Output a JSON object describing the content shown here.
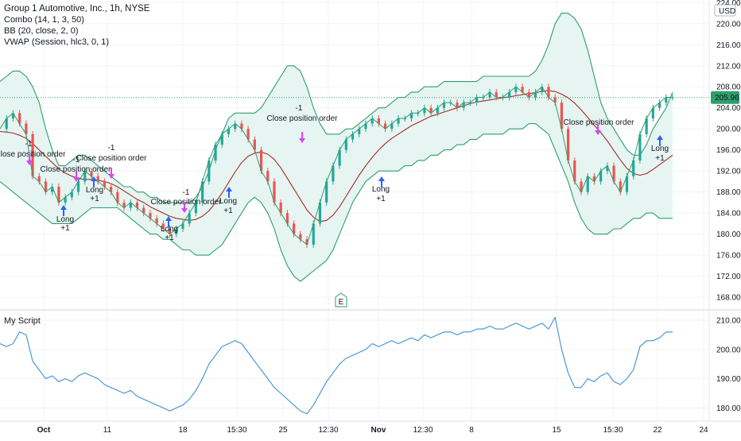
{
  "legend": {
    "title": "Group 1 Automotive, Inc., 1h, NYSE",
    "combo": "Combo (14, 1, 3, 50)",
    "bb": "BB (20, close, 2, 0)",
    "vwap": "VWAP (Session, hlc3, 0, 1)",
    "script": "My Script"
  },
  "currency": "USD",
  "last_price": "205.96",
  "earnings_marker": "E",
  "colors": {
    "up": "#26a69a",
    "down": "#ef5350",
    "bb_band": "#2e9e6b",
    "bb_fill": "#e6f5f1",
    "basis": "#a52a2a",
    "price_line": "#2e9e6b",
    "vwap": "#2962ff",
    "script_line": "#3d8fd6",
    "long_arrow": "#2962ff",
    "close_arrow": "#e040fb"
  },
  "x_axis_labels": [
    "Oct",
    "11",
    "18",
    "15:30",
    "25",
    "12:30",
    "Nov",
    "12:30",
    "8",
    "15",
    "15:30",
    "22",
    "24"
  ],
  "chart_data": [
    {
      "type": "line",
      "title": "Group 1 Automotive, Inc., 1h, NYSE",
      "yaxis_ticks": [
        "224.00",
        "220.00",
        "216.00",
        "212.00",
        "208.00",
        "204.00",
        "200.00",
        "196.00",
        "192.00",
        "188.00",
        "184.00",
        "180.00",
        "176.00",
        "172.00",
        "168.00"
      ],
      "ylim": [
        166.5,
        224.5
      ],
      "grid": true,
      "x": [
        0,
        2,
        4,
        6,
        8,
        10,
        12,
        14,
        16,
        18,
        20,
        22,
        24,
        26,
        28,
        30,
        32,
        34,
        36,
        38,
        40,
        42,
        44,
        46,
        48,
        50,
        52,
        54,
        56,
        58,
        60,
        62,
        64,
        66,
        68,
        70,
        72,
        74,
        76,
        78,
        80,
        82,
        84,
        86,
        88,
        90,
        92,
        94,
        96,
        98,
        100,
        102,
        104,
        106,
        108,
        110,
        112,
        114,
        116,
        118,
        120,
        122,
        124,
        126,
        128,
        130,
        132,
        134,
        136,
        138,
        140,
        142,
        144,
        146,
        148,
        150,
        152,
        154,
        156,
        158,
        160,
        162,
        164,
        166,
        168,
        170,
        172,
        174,
        176,
        178,
        180,
        182,
        184,
        186,
        188,
        190,
        192,
        194,
        196,
        198,
        200,
        202,
        204,
        206
      ],
      "series": [
        {
          "values": [
            200,
            202,
            203,
            201,
            199,
            191,
            190,
            188,
            189,
            186,
            187,
            188,
            190,
            192,
            191,
            190,
            189,
            188,
            186,
            185,
            186,
            185,
            184,
            183,
            182,
            181,
            180,
            181,
            182,
            184,
            186,
            190,
            194,
            197,
            199,
            200,
            201,
            200,
            198,
            196,
            192,
            190,
            186,
            184,
            182,
            180,
            179,
            178,
            182,
            186,
            190,
            193,
            196,
            198,
            199,
            200,
            201,
            202,
            201,
            200,
            201,
            202,
            202,
            203,
            203,
            204,
            203,
            204,
            205,
            205,
            204,
            205,
            205,
            206,
            206,
            207,
            206,
            206,
            207,
            208,
            207,
            206,
            207,
            208,
            206,
            205,
            200,
            194,
            190,
            188,
            191,
            190,
            192,
            193,
            190,
            188,
            191,
            194,
            199,
            202,
            204,
            205,
            206,
            206
          ]
        },
        {
          "name": "BB Basis",
          "values": [
            199.5,
            199.4,
            199.2,
            198.8,
            198.2,
            197.2,
            196,
            194.8,
            193.6,
            192.4,
            191.6,
            191,
            190.6,
            190.4,
            190.4,
            190.2,
            190,
            189.6,
            189,
            188.2,
            187.4,
            186.6,
            186,
            185.2,
            184.6,
            184,
            183.4,
            183,
            182.8,
            182.6,
            182.8,
            183.4,
            184.4,
            186,
            187.8,
            189.8,
            191.8,
            193.6,
            194.8,
            195.4,
            195.6,
            195.2,
            194.2,
            192.6,
            190.6,
            188.6,
            186.6,
            184.6,
            183.2,
            182.4,
            182.6,
            183.6,
            185.2,
            187.2,
            189.2,
            191.2,
            193,
            194.6,
            196,
            197.2,
            198.2,
            199,
            199.8,
            200.6,
            201.2,
            201.8,
            202.4,
            202.8,
            203.2,
            203.6,
            204,
            204.4,
            204.8,
            205.1,
            205.3,
            205.5,
            205.7,
            205.9,
            206.1,
            206.3,
            206.5,
            206.7,
            206.9,
            207.1,
            207.3,
            207.1,
            206.6,
            205.9,
            204.9,
            203.6,
            202.2,
            200.7,
            199.3,
            197.7,
            195.9,
            194.1,
            192.5,
            191.5,
            191.2,
            191.5,
            192.3,
            193.2,
            194.1,
            195
          ]
        },
        {
          "name": "BB Upper",
          "values": [
            209,
            210,
            211,
            211,
            210,
            208,
            205,
            200,
            196,
            193,
            193,
            194,
            195,
            195,
            194,
            193,
            192,
            191,
            190,
            189,
            189,
            188,
            188,
            187,
            187,
            186,
            186,
            186,
            186,
            186,
            187,
            189,
            192,
            196,
            199,
            202,
            203,
            203,
            203,
            203,
            204,
            206,
            208,
            210,
            212,
            212,
            211,
            208,
            204,
            201,
            199,
            199,
            199,
            200,
            200,
            201,
            202,
            203,
            204,
            204,
            205,
            206,
            206,
            207,
            207,
            208,
            208,
            208,
            209,
            209,
            209,
            209,
            209,
            209,
            210,
            210,
            210,
            210,
            210,
            210,
            210,
            210,
            211,
            213,
            216,
            220,
            222,
            222,
            221,
            219,
            215,
            210,
            205,
            202,
            200,
            198,
            196,
            195,
            195,
            197,
            200,
            202,
            204,
            207
          ]
        },
        {
          "name": "BB Lower",
          "values": [
            190,
            189,
            188,
            187,
            186,
            185,
            184,
            183,
            182,
            182,
            182,
            182,
            183,
            184,
            185,
            185,
            185,
            185,
            185,
            184,
            183,
            182,
            181,
            180,
            180,
            179,
            179,
            178,
            177,
            177,
            176,
            176,
            176,
            177,
            178,
            180,
            182,
            184,
            186,
            187,
            186,
            184,
            181,
            177,
            174,
            172,
            171,
            172,
            173,
            174,
            175,
            177,
            180,
            183,
            186,
            188,
            190,
            191,
            192,
            192,
            192,
            192,
            193,
            193,
            194,
            194,
            195,
            195,
            196,
            196,
            197,
            197,
            198,
            198,
            199,
            199,
            199,
            199,
            200,
            200,
            200,
            201,
            201,
            200,
            199,
            196,
            193,
            190,
            186,
            183,
            181,
            180,
            180,
            180,
            181,
            181,
            182,
            183,
            183,
            184,
            184,
            183,
            183,
            183
          ]
        }
      ],
      "annotations": [
        "Close position order",
        "-1",
        "Close position order",
        "-1",
        "Close position order",
        "-1",
        "Long",
        "+1",
        "Long",
        "+1",
        "Close position order",
        "-1",
        "Long",
        "+1",
        "Long",
        "+1",
        "Close position order",
        "-1",
        "Long",
        "+1",
        "Close position order",
        "Long",
        "+1"
      ]
    },
    {
      "type": "line",
      "title": "My Script",
      "yaxis_ticks": [
        "210.00",
        "200.00",
        "190.00",
        "180.00"
      ],
      "ylim": [
        175.5,
        213
      ],
      "grid": true,
      "x": [
        0,
        2,
        4,
        6,
        8,
        10,
        12,
        14,
        16,
        18,
        20,
        22,
        24,
        26,
        28,
        30,
        32,
        34,
        36,
        38,
        40,
        42,
        44,
        46,
        48,
        50,
        52,
        54,
        56,
        58,
        60,
        62,
        64,
        66,
        68,
        70,
        72,
        74,
        76,
        78,
        80,
        82,
        84,
        86,
        88,
        90,
        92,
        94,
        96,
        98,
        100,
        102,
        104,
        106,
        108,
        110,
        112,
        114,
        116,
        118,
        120,
        122,
        124,
        126,
        128,
        130,
        132,
        134,
        136,
        138,
        140,
        142,
        144,
        146,
        148,
        150,
        152,
        154,
        156,
        158,
        160,
        162,
        164,
        166,
        168,
        170,
        172,
        174,
        176,
        178,
        180,
        182,
        184,
        186,
        188,
        190,
        192,
        194,
        196,
        198,
        200,
        202,
        204,
        206
      ],
      "series": [
        {
          "values": [
            202,
            201,
            202,
            206,
            205,
            196,
            193,
            190,
            191,
            189,
            190,
            189,
            191,
            192,
            191,
            190,
            188,
            187,
            186,
            185,
            186,
            184,
            183,
            182,
            181,
            180,
            179,
            180,
            181,
            183,
            186,
            190,
            195,
            198,
            201,
            202,
            203,
            202,
            199,
            196,
            193,
            190,
            187,
            185,
            183,
            181,
            179,
            178,
            181,
            185,
            189,
            192,
            195,
            197,
            198,
            199,
            200,
            202,
            201,
            202,
            203,
            202,
            203,
            204,
            203,
            205,
            204,
            205,
            206,
            206,
            205,
            206,
            206,
            207,
            207,
            208,
            207,
            207,
            208,
            209,
            208,
            207,
            208,
            209,
            207,
            211,
            200,
            192,
            187,
            187,
            190,
            189,
            191,
            192,
            189,
            188,
            190,
            193,
            201,
            203,
            203,
            204,
            206,
            206
          ]
        }
      ]
    }
  ]
}
